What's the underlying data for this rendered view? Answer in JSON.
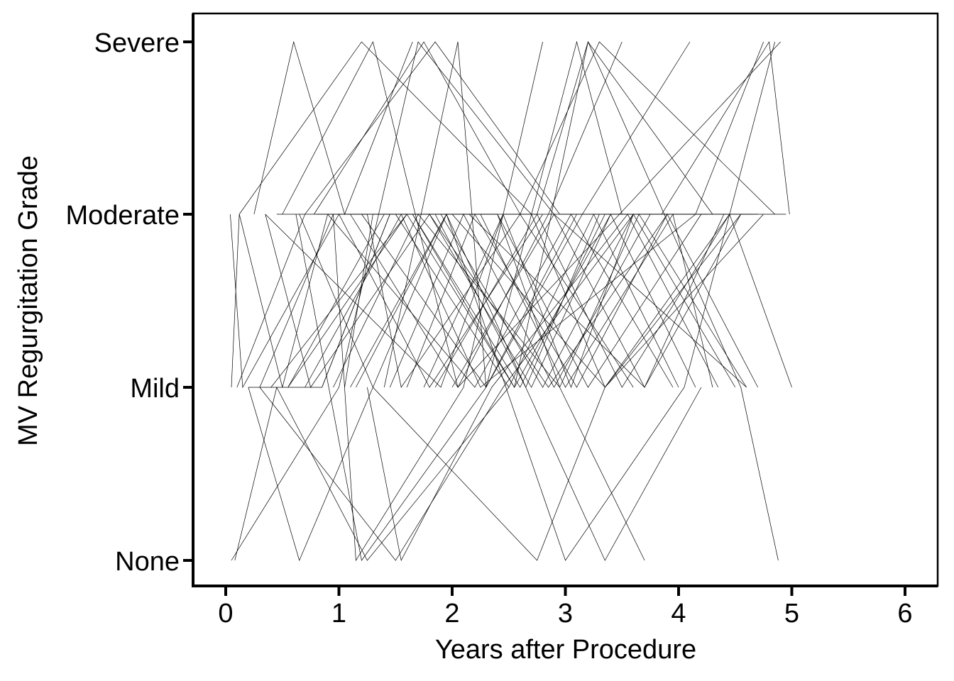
{
  "chart_data": {
    "type": "line",
    "title": "",
    "xlabel": "Years after Procedure",
    "ylabel": "MV Regurgitation Grade",
    "xlim": [
      -0.3,
      6.3
    ],
    "x_ticks": [
      "0",
      "1",
      "2",
      "3",
      "4",
      "5",
      "6"
    ],
    "y_categories": [
      "None",
      "Mild",
      "Moderate",
      "Severe"
    ],
    "grid": false,
    "legend": "none",
    "colors": {
      "line": "#000000",
      "axis": "#000000",
      "background": "#ffffff"
    },
    "series": [
      {
        "x": [
          0.05,
          0.12,
          0.5,
          0.9
        ],
        "y": [
          "Mild",
          "Moderate",
          "Mild",
          "Moderate"
        ]
      },
      {
        "x": [
          0.08,
          0.45,
          1.25,
          2.5
        ],
        "y": [
          "None",
          "Mild",
          "None",
          "Mild"
        ]
      },
      {
        "x": [
          0.04,
          0.15,
          1.0,
          1.8,
          2.8
        ],
        "y": [
          "Moderate",
          "Mild",
          "Moderate",
          "Mild",
          "Moderate"
        ]
      },
      {
        "x": [
          0.2,
          0.65,
          1.3,
          1.95
        ],
        "y": [
          "Mild",
          "None",
          "Mild",
          "Moderate"
        ]
      },
      {
        "x": [
          0.25,
          0.6,
          1.05,
          1.65
        ],
        "y": [
          "Moderate",
          "Severe",
          "Moderate",
          "Severe"
        ]
      },
      {
        "x": [
          0.3,
          0.95,
          1.15,
          2.1,
          2.8
        ],
        "y": [
          "Mild",
          "Moderate",
          "None",
          "Mild",
          "Severe"
        ]
      },
      {
        "x": [
          0.35,
          1.9,
          2.45,
          3.15,
          4.1
        ],
        "y": [
          "Moderate",
          "Mild",
          "Moderate",
          "Moderate",
          "Severe"
        ]
      },
      {
        "x": [
          0.4,
          1.6,
          2.55,
          3.4
        ],
        "y": [
          "Mild",
          "Moderate",
          "Mild",
          "Moderate"
        ]
      },
      {
        "x": [
          0.5,
          1.3,
          2.05,
          4.9
        ],
        "y": [
          "Moderate",
          "Severe",
          "Mild",
          "Severe"
        ]
      },
      {
        "x": [
          0.55,
          1.4,
          2.0,
          3.35,
          4.55
        ],
        "y": [
          "Mild",
          "Moderate",
          "Moderate",
          "Mild",
          "Moderate"
        ]
      },
      {
        "x": [
          0.62,
          1.2,
          2.3,
          3.1
        ],
        "y": [
          "Moderate",
          "None",
          "Mild",
          "Moderate"
        ]
      },
      {
        "x": [
          0.7,
          1.55,
          2.25,
          4.15,
          4.75
        ],
        "y": [
          "Mild",
          "Moderate",
          "Mild",
          "Moderate",
          "Severe"
        ]
      },
      {
        "x": [
          0.78,
          1.75,
          2.6,
          3.6
        ],
        "y": [
          "Moderate",
          "Severe",
          "Moderate",
          "Mild"
        ]
      },
      {
        "x": [
          0.85,
          1.45,
          2.75,
          3.2,
          4.3
        ],
        "y": [
          "Mild",
          "Moderate",
          "Moderate",
          "Severe",
          "Moderate"
        ]
      },
      {
        "x": [
          0.9,
          2.2,
          3.05,
          3.95
        ],
        "y": [
          "Moderate",
          "Mild",
          "Moderate",
          "Mild"
        ]
      },
      {
        "x": [
          0.95,
          1.7,
          2.95,
          3.65,
          4.6
        ],
        "y": [
          "Mild",
          "Moderate",
          "Mild",
          "Moderate",
          "Mild"
        ]
      },
      {
        "x": [
          1.0,
          1.85,
          2.65,
          3.3
        ],
        "y": [
          "Moderate",
          "Moderate",
          "Mild",
          "Moderate"
        ]
      },
      {
        "x": [
          1.05,
          1.3,
          2.15,
          3.7,
          4.4
        ],
        "y": [
          "Mild",
          "Moderate",
          "Moderate",
          "Mild",
          "Moderate"
        ]
      },
      {
        "x": [
          1.1,
          2.05,
          2.85,
          3.5
        ],
        "y": [
          "Moderate",
          "Mild",
          "Moderate",
          "Severe"
        ]
      },
      {
        "x": [
          1.15,
          1.95,
          3.0,
          4.05,
          4.85
        ],
        "y": [
          "Mild",
          "Moderate",
          "None",
          "Mild",
          "Severe"
        ]
      },
      {
        "x": [
          1.2,
          2.3,
          3.15,
          3.85
        ],
        "y": [
          "Moderate",
          "Mild",
          "Moderate",
          "Moderate"
        ]
      },
      {
        "x": [
          1.25,
          1.55,
          2.35,
          3.55,
          4.35
        ],
        "y": [
          "Mild",
          "None",
          "Mild",
          "Moderate",
          "Mild"
        ]
      },
      {
        "x": [
          1.35,
          2.4,
          3.2,
          4.2
        ],
        "y": [
          "Moderate",
          "Moderate",
          "Mild",
          "Moderate"
        ]
      },
      {
        "x": [
          1.45,
          2.1,
          2.9,
          3.75,
          4.65
        ],
        "y": [
          "Mild",
          "Moderate",
          "Mild",
          "Moderate",
          "Moderate"
        ]
      },
      {
        "x": [
          1.5,
          2.5,
          3.25,
          4.0
        ],
        "y": [
          "Moderate",
          "Mild",
          "Moderate",
          "Mild"
        ]
      },
      {
        "x": [
          1.6,
          2.2,
          3.1,
          3.9,
          4.7
        ],
        "y": [
          "Mild",
          "Moderate",
          "Mild",
          "Moderate",
          "Mild"
        ]
      },
      {
        "x": [
          1.65,
          2.6,
          3.35,
          4.05
        ],
        "y": [
          "Moderate",
          "Mild",
          "Moderate",
          "Moderate"
        ]
      },
      {
        "x": [
          1.75,
          2.45,
          3.05,
          3.6,
          4.5
        ],
        "y": [
          "Mild",
          "Moderate",
          "Mild",
          "Moderate",
          "Mild"
        ]
      },
      {
        "x": [
          1.8,
          2.7,
          3.4,
          4.15
        ],
        "y": [
          "Moderate",
          "Mild",
          "Moderate",
          "Mild"
        ]
      },
      {
        "x": [
          1.85,
          2.75,
          3.5,
          4.45,
          5.0
        ],
        "y": [
          "Mild",
          "Moderate",
          "Mild",
          "Moderate",
          "Mild"
        ]
      },
      {
        "x": [
          1.9,
          2.8,
          3.6,
          4.25
        ],
        "y": [
          "Moderate",
          "Mild",
          "Moderate",
          "Moderate"
        ]
      },
      {
        "x": [
          2.0,
          2.9,
          3.7,
          4.55,
          4.95
        ],
        "y": [
          "Mild",
          "Moderate",
          "Mild",
          "Moderate",
          "Moderate"
        ]
      },
      {
        "x": [
          0.1,
          0.7,
          1.85,
          2.95,
          3.85,
          4.8,
          4.98
        ],
        "y": [
          "Mild",
          "Moderate",
          "Severe",
          "Moderate",
          "Moderate",
          "Severe",
          "Moderate"
        ]
      },
      {
        "x": [
          0.05,
          1.0,
          1.7,
          2.9,
          4.6
        ],
        "y": [
          "None",
          "Mild",
          "Severe",
          "Moderate",
          "Mild"
        ]
      },
      {
        "x": [
          0.3,
          1.5,
          2.45,
          3.6
        ],
        "y": [
          "Mild",
          "None",
          "Mild",
          "Moderate"
        ]
      },
      {
        "x": [
          0.65,
          1.3,
          2.75,
          3.35,
          4.75
        ],
        "y": [
          "Moderate",
          "Mild",
          "None",
          "Mild",
          "Moderate"
        ]
      },
      {
        "x": [
          1.1,
          1.95,
          3.35,
          4.2
        ],
        "y": [
          "Mild",
          "Moderate",
          "None",
          "Mild"
        ]
      },
      {
        "x": [
          1.4,
          2.05,
          2.3,
          3.1,
          3.5
        ],
        "y": [
          "Mild",
          "Severe",
          "Mild",
          "Severe",
          "Moderate"
        ]
      },
      {
        "x": [
          0.45,
          1.25,
          1.55,
          2.6,
          3.3,
          4.85
        ],
        "y": [
          "Moderate",
          "Moderate",
          "Mild",
          "Moderate",
          "Severe",
          "Moderate"
        ]
      },
      {
        "x": [
          0.55,
          1.6,
          2.4,
          2.95,
          3.7
        ],
        "y": [
          "Mild",
          "Moderate",
          "Moderate",
          "Mild",
          "None"
        ]
      },
      {
        "x": [
          0.8,
          1.65,
          2.55,
          3.2,
          4.55,
          4.88
        ],
        "y": [
          "Moderate",
          "Moderate",
          "Mild",
          "Severe",
          "Mild",
          "None"
        ]
      },
      {
        "x": [
          0.12,
          1.2,
          2.7,
          3.35,
          4.45
        ],
        "y": [
          "Moderate",
          "Severe",
          "Moderate",
          "Mild",
          "Moderate"
        ]
      },
      {
        "x": [
          0.35,
          0.75,
          1.8,
          2.85,
          3.9,
          4.7
        ],
        "y": [
          "Moderate",
          "Mild",
          "Moderate",
          "Mild",
          "Moderate",
          "Moderate"
        ]
      },
      {
        "x": [
          0.2,
          0.85,
          1.45,
          2.25,
          3.0,
          3.95,
          4.3
        ],
        "y": [
          "Mild",
          "Mild",
          "Moderate",
          "Moderate",
          "Mild",
          "Moderate",
          "Mild"
        ]
      }
    ]
  }
}
